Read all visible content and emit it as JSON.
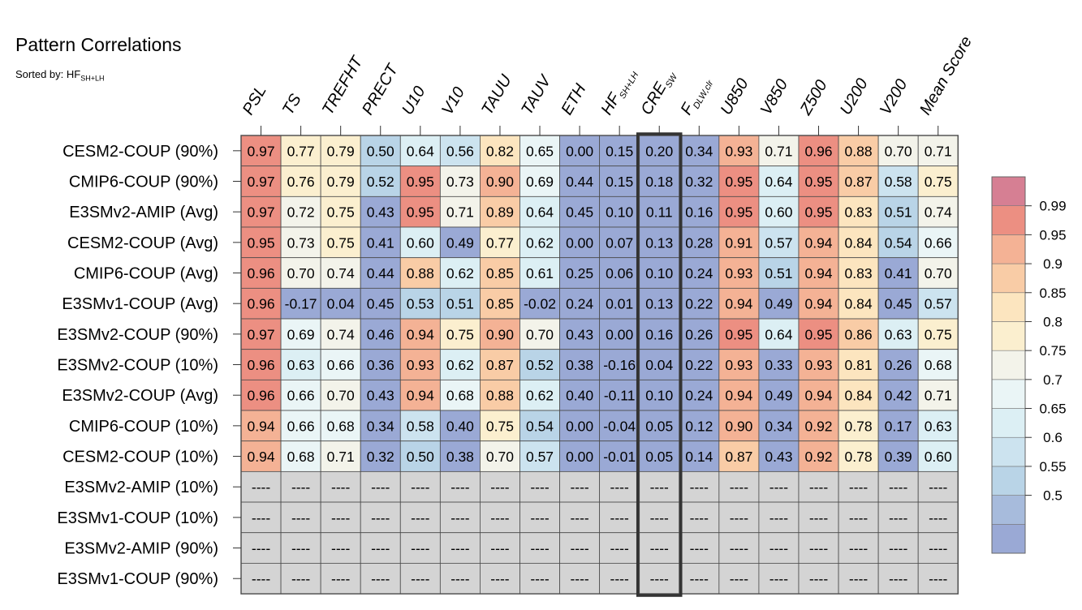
{
  "title": "Pattern Correlations",
  "subtitle": {
    "prefix": "Sorted by: ",
    "sort_var_main": "HF",
    "sort_var_sub": "SH+LH"
  },
  "colors": {
    "missing": "#d4d4d4",
    "grid": "#4a4a4a",
    "highlight_box": "#333333",
    "levels": [
      "#9aa9d5",
      "#a7bbdc",
      "#b9d4e7",
      "#cce3ef",
      "#dceff4",
      "#eaf5f6",
      "#f3f3ea",
      "#fbefcf",
      "#fce5bf",
      "#f9cca6",
      "#f4b295",
      "#ec8f82",
      "#d67f93"
    ]
  },
  "chart_data": {
    "type": "heatmap",
    "title": "Pattern Correlations",
    "columns": [
      {
        "main": "PSL",
        "sub": ""
      },
      {
        "main": "TS",
        "sub": ""
      },
      {
        "main": "TREFHT",
        "sub": ""
      },
      {
        "main": "PRECT",
        "sub": ""
      },
      {
        "main": "U10",
        "sub": ""
      },
      {
        "main": "V10",
        "sub": ""
      },
      {
        "main": "TAUU",
        "sub": ""
      },
      {
        "main": "TAUV",
        "sub": ""
      },
      {
        "main": "ETH",
        "sub": ""
      },
      {
        "main": "HF",
        "sub": "SH+LH"
      },
      {
        "main": "CRE",
        "sub": "SW"
      },
      {
        "main": "F",
        "sub": "DLW,clr"
      },
      {
        "main": "U850",
        "sub": ""
      },
      {
        "main": "V850",
        "sub": ""
      },
      {
        "main": "Z500",
        "sub": ""
      },
      {
        "main": "U200",
        "sub": ""
      },
      {
        "main": "V200",
        "sub": ""
      },
      {
        "main": "Mean Score",
        "sub": ""
      }
    ],
    "rows": [
      {
        "label": "CESM2-COUP (90%)",
        "values": [
          "0.97",
          "0.77",
          "0.79",
          "0.50",
          "0.64",
          "0.56",
          "0.82",
          "0.65",
          "0.00",
          "0.15",
          "0.20",
          "0.34",
          "0.93",
          "0.71",
          "0.96",
          "0.88",
          "0.70",
          "0.71"
        ]
      },
      {
        "label": "CMIP6-COUP (90%)",
        "values": [
          "0.97",
          "0.76",
          "0.79",
          "0.52",
          "0.95",
          "0.73",
          "0.90",
          "0.69",
          "0.44",
          "0.15",
          "0.18",
          "0.32",
          "0.95",
          "0.64",
          "0.95",
          "0.87",
          "0.58",
          "0.75"
        ]
      },
      {
        "label": "E3SMv2-AMIP (Avg)",
        "values": [
          "0.97",
          "0.72",
          "0.75",
          "0.43",
          "0.95",
          "0.71",
          "0.89",
          "0.64",
          "0.45",
          "0.10",
          "0.11",
          "0.16",
          "0.95",
          "0.60",
          "0.95",
          "0.83",
          "0.51",
          "0.74"
        ]
      },
      {
        "label": "CESM2-COUP (Avg)",
        "values": [
          "0.95",
          "0.73",
          "0.75",
          "0.41",
          "0.60",
          "0.49",
          "0.77",
          "0.62",
          "0.00",
          "0.07",
          "0.13",
          "0.28",
          "0.91",
          "0.57",
          "0.94",
          "0.84",
          "0.54",
          "0.66"
        ]
      },
      {
        "label": "CMIP6-COUP (Avg)",
        "values": [
          "0.96",
          "0.70",
          "0.74",
          "0.44",
          "0.88",
          "0.62",
          "0.85",
          "0.61",
          "0.25",
          "0.06",
          "0.10",
          "0.24",
          "0.93",
          "0.51",
          "0.94",
          "0.83",
          "0.41",
          "0.70"
        ]
      },
      {
        "label": "E3SMv1-COUP (Avg)",
        "values": [
          "0.96",
          "-0.17",
          "0.04",
          "0.45",
          "0.53",
          "0.51",
          "0.85",
          "-0.02",
          "0.24",
          "0.01",
          "0.13",
          "0.22",
          "0.94",
          "0.49",
          "0.94",
          "0.84",
          "0.45",
          "0.57"
        ]
      },
      {
        "label": "E3SMv2-COUP (90%)",
        "values": [
          "0.97",
          "0.69",
          "0.74",
          "0.46",
          "0.94",
          "0.75",
          "0.90",
          "0.70",
          "0.43",
          "0.00",
          "0.16",
          "0.26",
          "0.95",
          "0.64",
          "0.95",
          "0.86",
          "0.63",
          "0.75"
        ]
      },
      {
        "label": "E3SMv2-COUP (10%)",
        "values": [
          "0.96",
          "0.63",
          "0.66",
          "0.36",
          "0.93",
          "0.62",
          "0.87",
          "0.52",
          "0.38",
          "-0.16",
          "0.04",
          "0.22",
          "0.93",
          "0.33",
          "0.93",
          "0.81",
          "0.26",
          "0.68"
        ]
      },
      {
        "label": "E3SMv2-COUP (Avg)",
        "values": [
          "0.96",
          "0.66",
          "0.70",
          "0.43",
          "0.94",
          "0.68",
          "0.88",
          "0.62",
          "0.40",
          "-0.11",
          "0.10",
          "0.24",
          "0.94",
          "0.49",
          "0.94",
          "0.84",
          "0.42",
          "0.71"
        ]
      },
      {
        "label": "CMIP6-COUP (10%)",
        "values": [
          "0.94",
          "0.66",
          "0.68",
          "0.34",
          "0.58",
          "0.40",
          "0.75",
          "0.54",
          "0.00",
          "-0.04",
          "0.05",
          "0.12",
          "0.90",
          "0.34",
          "0.92",
          "0.78",
          "0.17",
          "0.63"
        ]
      },
      {
        "label": "CESM2-COUP (10%)",
        "values": [
          "0.94",
          "0.68",
          "0.71",
          "0.32",
          "0.50",
          "0.38",
          "0.70",
          "0.57",
          "0.00",
          "-0.01",
          "0.05",
          "0.14",
          "0.87",
          "0.43",
          "0.92",
          "0.78",
          "0.39",
          "0.60"
        ]
      },
      {
        "label": "E3SMv2-AMIP (10%)",
        "values": [
          "----",
          "----",
          "----",
          "----",
          "----",
          "----",
          "----",
          "----",
          "----",
          "----",
          "----",
          "----",
          "----",
          "----",
          "----",
          "----",
          "----",
          "----"
        ]
      },
      {
        "label": "E3SMv1-COUP (10%)",
        "values": [
          "----",
          "----",
          "----",
          "----",
          "----",
          "----",
          "----",
          "----",
          "----",
          "----",
          "----",
          "----",
          "----",
          "----",
          "----",
          "----",
          "----",
          "----"
        ]
      },
      {
        "label": "E3SMv2-AMIP (90%)",
        "values": [
          "----",
          "----",
          "----",
          "----",
          "----",
          "----",
          "----",
          "----",
          "----",
          "----",
          "----",
          "----",
          "----",
          "----",
          "----",
          "----",
          "----",
          "----"
        ]
      },
      {
        "label": "E3SMv1-COUP (90%)",
        "values": [
          "----",
          "----",
          "----",
          "----",
          "----",
          "----",
          "----",
          "----",
          "----",
          "----",
          "----",
          "----",
          "----",
          "----",
          "----",
          "----",
          "----",
          "----"
        ]
      }
    ],
    "missing_text": "----",
    "highlighted_column": "CRE",
    "colorbar": {
      "labels": [
        "0.99",
        "0.95",
        "0.9",
        "0.85",
        "0.8",
        "0.75",
        "0.7",
        "0.65",
        "0.6",
        "0.55",
        "0.5"
      ],
      "thresholds": [
        0.5,
        0.55,
        0.6,
        0.65,
        0.7,
        0.75,
        0.8,
        0.85,
        0.9,
        0.95,
        0.99
      ],
      "levels": 13
    }
  }
}
